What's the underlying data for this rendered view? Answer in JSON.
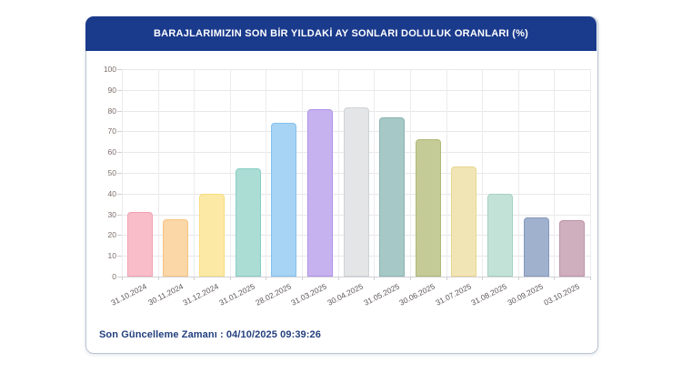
{
  "header": {
    "title": "BARAJLARIMIZIN SON BİR YILDAKİ AY SONLARI DOLULUK ORANLARI (%)",
    "background_color": "#1a3a8c",
    "text_color": "#ffffff"
  },
  "footer": {
    "label": "Son Güncelleme Zamanı : 04/10/2025 09:39:26"
  },
  "chart_data": {
    "type": "bar",
    "title": "BARAJLARIMIZIN SON BİR YILDAKİ AY SONLARI DOLULUK ORANLARI (%)",
    "xlabel": "",
    "ylabel": "",
    "ylim": [
      0,
      100
    ],
    "ytick_step": 10,
    "grid": true,
    "legend": "none",
    "categories": [
      "31.10.2024",
      "30.11.2024",
      "31.12.2024",
      "31.01.2025",
      "28.02.2025",
      "31.03.2025",
      "30.04.2025",
      "31.05.2025",
      "30.06.2025",
      "31.07.2025",
      "31.08.2025",
      "30.09.2025",
      "03.10.2025"
    ],
    "values": [
      31.0,
      27.7,
      39.7,
      52.2,
      74.2,
      80.5,
      81.4,
      76.8,
      66.1,
      52.9,
      39.7,
      28.5,
      27.0
    ],
    "bar_fill_colors": [
      "#f8bdc9",
      "#fbd7a7",
      "#fce9a6",
      "#abddd5",
      "#a7d3f4",
      "#c7b2f0",
      "#e3e5e7",
      "#a6c9c7",
      "#c5cb96",
      "#f2e5b5",
      "#c3e2d7",
      "#a0b1cd",
      "#cfafbe"
    ],
    "bar_border_colors": [
      "#f3a0b3",
      "#f7c383",
      "#f9dd7e",
      "#88cec3",
      "#84c0ee",
      "#ae92e8",
      "#d0d3d6",
      "#8bb4b2",
      "#b0b877",
      "#e8d690",
      "#a5d2c1",
      "#8598bc",
      "#bd93a8"
    ],
    "gridline_color": "#e8e8eb",
    "axis_line_color": "#d2d2d7",
    "y_tick_label_color": "#7c6d69",
    "x_tick_label_color": "#5e5657"
  }
}
